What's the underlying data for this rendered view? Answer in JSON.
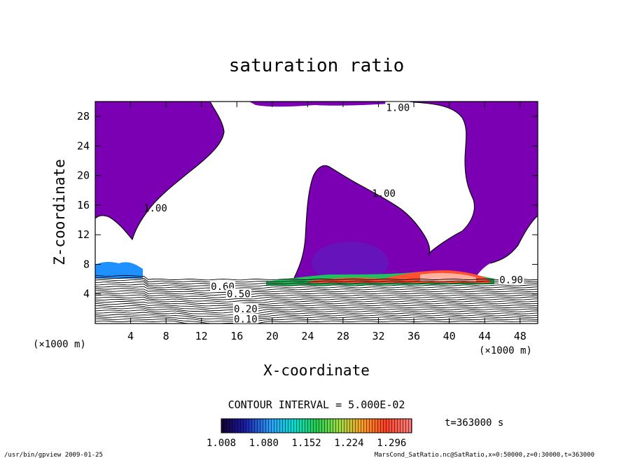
{
  "chart_data": {
    "type": "contour",
    "title": "saturation ratio",
    "xlabel": "X-coordinate",
    "ylabel": "Z-coordinate",
    "x_unit": "(×1000 m)",
    "y_unit": "(×1000 m)",
    "xlim": [
      0,
      50
    ],
    "ylim": [
      0,
      30
    ],
    "x_ticks": [
      4,
      8,
      12,
      16,
      20,
      24,
      28,
      32,
      36,
      40,
      44,
      48
    ],
    "y_ticks": [
      4,
      8,
      12,
      16,
      20,
      24,
      28
    ],
    "contour_interval": "CONTOUR INTERVAL = 5.000E-02",
    "contour_labels": [
      {
        "text": "1.00",
        "x": 34.2,
        "y": 29.2
      },
      {
        "text": "1.00",
        "x": 6.8,
        "y": 15.6
      },
      {
        "text": "1.00",
        "x": 32.6,
        "y": 17.6
      },
      {
        "text": "0.90",
        "x": 47.0,
        "y": 5.9
      },
      {
        "text": "0.60",
        "x": 14.4,
        "y": 5.0
      },
      {
        "text": "0.50",
        "x": 16.2,
        "y": 4.0
      },
      {
        "text": "0.20",
        "x": 17.0,
        "y": 2.0
      },
      {
        "text": "0.10",
        "x": 17.0,
        "y": 0.6
      }
    ],
    "colorbar": {
      "min": 1.008,
      "max": 1.33,
      "tick_labels": [
        "1.008",
        "1.080",
        "1.152",
        "1.224",
        "1.296"
      ],
      "tick_values": [
        1.008,
        1.08,
        1.152,
        1.224,
        1.296
      ]
    },
    "colors": {
      "fill": "#7b00b4",
      "background": "#ffffff"
    },
    "time_label": "t=363000 s",
    "footer_left": "/usr/bin/gpview  2009-01-25",
    "footer_right": "MarsCond_SatRatio.nc@SatRatio,x=0:50000,z=0:30000,t=363000"
  }
}
